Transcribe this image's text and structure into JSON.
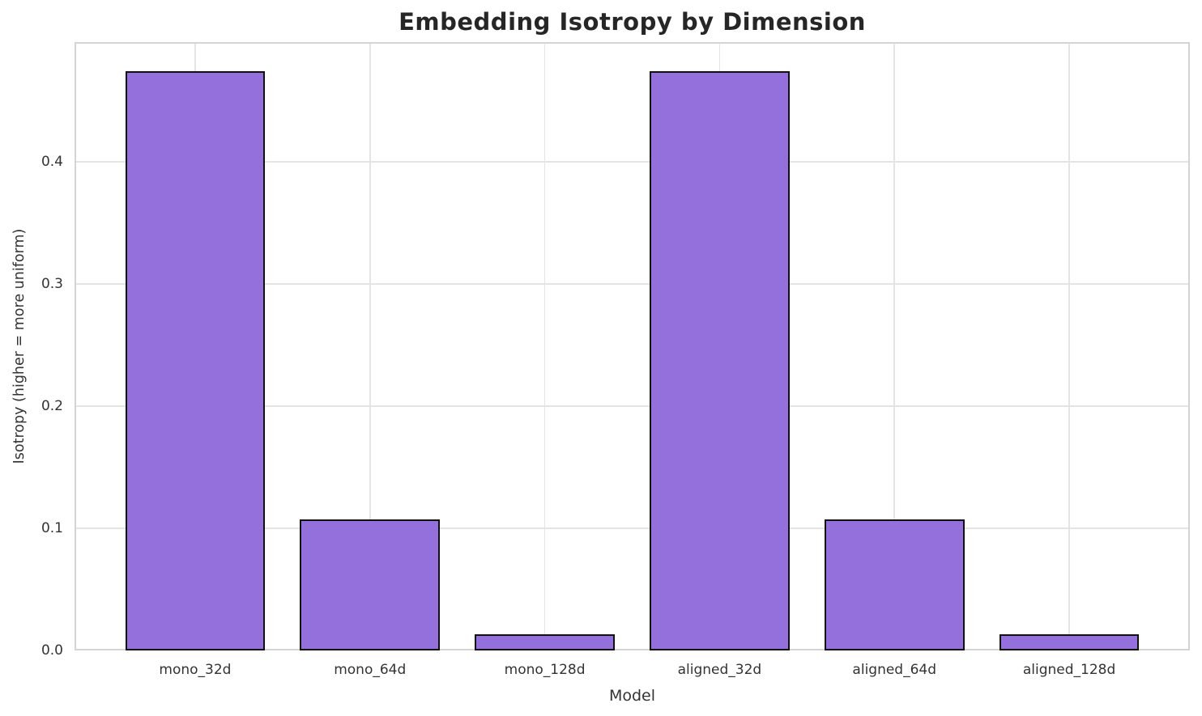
{
  "chart_data": {
    "type": "bar",
    "title": "Embedding Isotropy by Dimension",
    "xlabel": "Model",
    "ylabel": "Isotropy (higher = more uniform)",
    "categories": [
      "mono_32d",
      "mono_64d",
      "mono_128d",
      "aligned_32d",
      "aligned_64d",
      "aligned_128d"
    ],
    "values": [
      0.474,
      0.107,
      0.013,
      0.474,
      0.107,
      0.013
    ],
    "ylim": [
      0,
      0.498
    ],
    "yticks": [
      "0.0",
      "0.1",
      "0.2",
      "0.3",
      "0.4"
    ],
    "grid": "on",
    "legend": "none",
    "colors": {
      "bar_fill": "#9370DB",
      "bar_edge": "#111111",
      "gridline": "#e4e4e4",
      "spine": "#d4d4d4",
      "tick_text": "#333333",
      "title_text": "#262626",
      "background": "#ffffff"
    }
  }
}
